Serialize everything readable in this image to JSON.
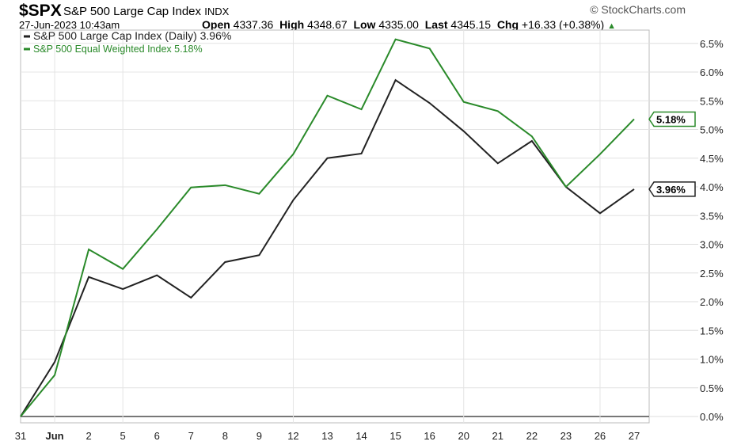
{
  "header": {
    "symbol": "$SPX",
    "name": "S&P 500 Large Cap Index",
    "exchange": "INDX",
    "datetime": "27-Jun-2023 10:43am",
    "open_label": "Open",
    "open": "4337.36",
    "high_label": "High",
    "high": "4348.67",
    "low_label": "Low",
    "low": "4335.00",
    "last_label": "Last",
    "last": "4345.15",
    "chg_label": "Chg",
    "chg": "+16.33 (+0.38%)",
    "brand": "© StockCharts.com"
  },
  "chart_data": {
    "type": "line",
    "title": "",
    "x": [
      "31",
      "Jun",
      "2",
      "5",
      "6",
      "7",
      "8",
      "9",
      "12",
      "13",
      "14",
      "15",
      "16",
      "20",
      "21",
      "22",
      "23",
      "26",
      "27"
    ],
    "ylim": [
      0,
      6.8
    ],
    "yticks": [
      "0.0%",
      "0.5%",
      "1.0%",
      "1.5%",
      "2.0%",
      "2.5%",
      "3.0%",
      "3.5%",
      "4.0%",
      "4.5%",
      "5.0%",
      "5.5%",
      "6.0%",
      "6.5%"
    ],
    "grid": true,
    "legend_placement": "top-left",
    "series": [
      {
        "name": "S&P 500 Large Cap Index (Daily) 3.96%",
        "color": "#222222",
        "end_label": "3.96%",
        "values": [
          0,
          0.95,
          2.43,
          2.22,
          2.46,
          2.07,
          2.69,
          2.81,
          3.77,
          4.5,
          4.58,
          5.86,
          5.46,
          4.97,
          4.41,
          4.8,
          4.0,
          3.54,
          3.96
        ]
      },
      {
        "name": "S&P 500 Equal Weighted Index 5.18%",
        "color": "#2a8a2a",
        "end_label": "5.18%",
        "values": [
          0,
          0.72,
          2.91,
          2.57,
          3.26,
          3.99,
          4.03,
          3.88,
          4.57,
          5.59,
          5.35,
          6.57,
          6.41,
          5.48,
          5.32,
          4.88,
          4.0,
          4.57,
          5.18
        ]
      }
    ],
    "gridline_dates": [
      "Jun",
      "5",
      "12",
      "20",
      "26"
    ]
  }
}
